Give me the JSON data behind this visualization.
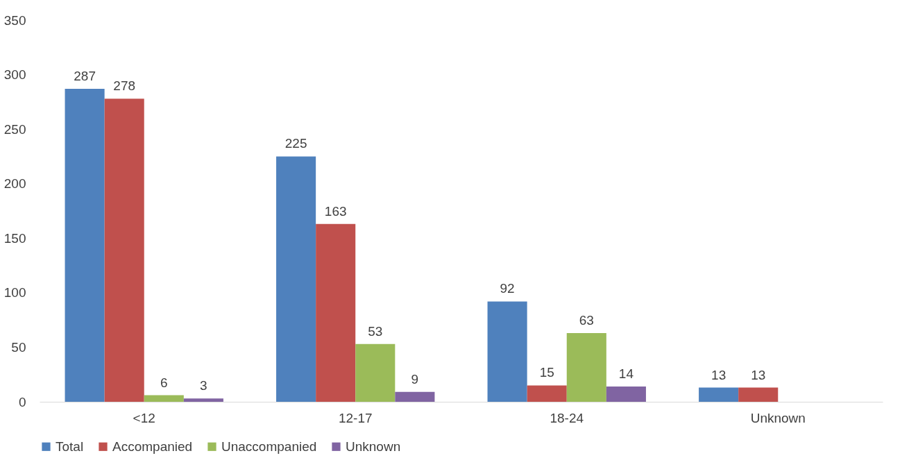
{
  "chart_data": {
    "type": "bar",
    "categories": [
      "<12",
      "12-17",
      "18-24",
      "Unknown"
    ],
    "series": [
      {
        "name": "Total",
        "color": "#4f81bd",
        "values": [
          287,
          225,
          92,
          13
        ]
      },
      {
        "name": "Accompanied",
        "color": "#c0504d",
        "values": [
          278,
          163,
          15,
          13
        ]
      },
      {
        "name": "Unaccompanied",
        "color": "#9bbb59",
        "values": [
          6,
          53,
          63,
          null
        ]
      },
      {
        "name": "Unknown",
        "color": "#8064a2",
        "values": [
          3,
          9,
          14,
          null
        ]
      }
    ],
    "ylim": [
      0,
      350
    ],
    "yticks": [
      0,
      50,
      100,
      150,
      200,
      250,
      300,
      350
    ],
    "grid": false,
    "legend": "bottom",
    "data_labels": true
  }
}
